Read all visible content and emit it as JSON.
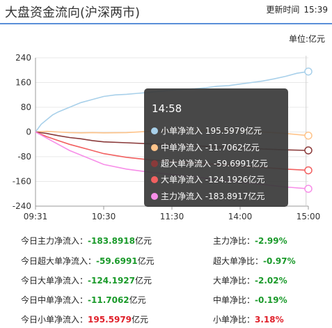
{
  "header": {
    "title": "大盘资金流向(沪深两市)",
    "update_label": "更新时间",
    "update_time": "15:39"
  },
  "unit_label": "单位:亿元",
  "chart_data": {
    "type": "line",
    "x_ticks": [
      "09:31",
      "10:30",
      "11:30",
      "14:00",
      "15:00"
    ],
    "y_ticks": [
      240,
      160,
      80,
      0,
      -80,
      -160,
      -240
    ],
    "ylim": [
      -240,
      240
    ],
    "grid": true,
    "series": [
      {
        "name": "小单净流入",
        "color": "#a8d0ea",
        "x": [
          0,
          5,
          10,
          15,
          20,
          30,
          40,
          50,
          60,
          70,
          80,
          90,
          100,
          110,
          120,
          130,
          140,
          150,
          160,
          170,
          180,
          190,
          200,
          210,
          220,
          230,
          240
        ],
        "y": [
          0,
          25,
          40,
          55,
          65,
          80,
          95,
          105,
          115,
          120,
          122,
          125,
          128,
          132,
          135,
          138,
          140,
          143,
          148,
          150,
          155,
          160,
          165,
          172,
          180,
          190,
          195.5979
        ]
      },
      {
        "name": "中单净流入",
        "color": "#ffc48a",
        "x": [
          0,
          10,
          20,
          30,
          40,
          50,
          60,
          80,
          100,
          120,
          140,
          160,
          180,
          200,
          220,
          240
        ],
        "y": [
          0,
          2,
          0,
          -2,
          -3,
          -2,
          -3,
          -2,
          2,
          3,
          5,
          3,
          2,
          0,
          -5,
          -11.7062
        ]
      },
      {
        "name": "超大单净流入",
        "color": "#8a3a3a",
        "x": [
          0,
          10,
          20,
          30,
          40,
          50,
          60,
          80,
          100,
          120,
          140,
          160,
          180,
          200,
          220,
          240
        ],
        "y": [
          0,
          -5,
          -12,
          -18,
          -22,
          -28,
          -32,
          -35,
          -38,
          -42,
          -45,
          -48,
          -50,
          -55,
          -58,
          -59.6991
        ]
      },
      {
        "name": "大单净流入",
        "color": "#f26060",
        "x": [
          0,
          10,
          20,
          30,
          40,
          50,
          60,
          80,
          100,
          120,
          140,
          160,
          180,
          200,
          220,
          240
        ],
        "y": [
          0,
          -15,
          -28,
          -40,
          -50,
          -60,
          -70,
          -82,
          -90,
          -95,
          -100,
          -105,
          -110,
          -115,
          -120,
          -124.1926
        ]
      },
      {
        "name": "主力净流入",
        "color": "#f78ee8",
        "x": [
          0,
          10,
          20,
          30,
          40,
          50,
          60,
          80,
          100,
          120,
          140,
          160,
          180,
          200,
          220,
          240
        ],
        "y": [
          0,
          -20,
          -40,
          -60,
          -75,
          -90,
          -105,
          -120,
          -130,
          -138,
          -145,
          -155,
          -162,
          -170,
          -178,
          -183.8917
        ]
      }
    ]
  },
  "tooltip": {
    "time": "14:58",
    "rows": [
      {
        "text": "小单净流入 195.5979亿元",
        "color": "#a8d0ea"
      },
      {
        "text": "中单净流入 -11.7062亿元",
        "color": "#ffc48a"
      },
      {
        "text": "超大单净流入 -59.6991亿元",
        "color": "#8a3a3a"
      },
      {
        "text": "大单净流入 -124.1926亿元",
        "color": "#f26060"
      },
      {
        "text": "主力净流入 -183.8917亿元",
        "color": "#f78ee8"
      }
    ]
  },
  "stats": {
    "left": [
      {
        "label": "今日主力净流入：",
        "value": "-183.8918",
        "unit": "亿元",
        "color": "green"
      },
      {
        "label": "今日超大单净流入：",
        "value": "-59.6991",
        "unit": "亿元",
        "color": "green"
      },
      {
        "label": "今日大单净流入：",
        "value": "-124.1927",
        "unit": "亿元",
        "color": "green"
      },
      {
        "label": "今日中单净流入：",
        "value": "-11.7062",
        "unit": "亿元",
        "color": "green"
      },
      {
        "label": "今日小单净流入：",
        "value": "195.5979",
        "unit": "亿元",
        "color": "red"
      }
    ],
    "right": [
      {
        "label": "主力净比：",
        "value": "-2.99%",
        "color": "green"
      },
      {
        "label": "超大单净比：",
        "value": "-0.97%",
        "color": "green"
      },
      {
        "label": "大单净比：",
        "value": "-2.02%",
        "color": "green"
      },
      {
        "label": "中单净比：",
        "value": "-0.19%",
        "color": "green"
      },
      {
        "label": "小单净比：",
        "value": "3.18%",
        "color": "red"
      }
    ]
  }
}
